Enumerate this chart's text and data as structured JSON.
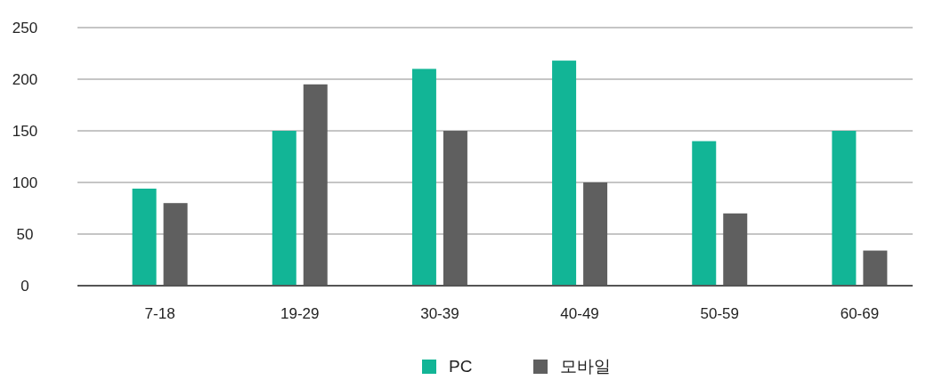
{
  "chart_data": {
    "type": "bar",
    "categories": [
      "7-18",
      "19-29",
      "30-39",
      "40-49",
      "50-59",
      "60-69"
    ],
    "series": [
      {
        "name": "PC",
        "color": "#12b596",
        "values": [
          94,
          150,
          210,
          218,
          140,
          150
        ]
      },
      {
        "name": "모바일",
        "color": "#5f5f5f",
        "values": [
          80,
          195,
          150,
          100,
          70,
          34
        ]
      }
    ],
    "ylim": [
      0,
      250
    ],
    "yticks": [
      0,
      50,
      100,
      150,
      200,
      250
    ],
    "grid": "y",
    "legend": "bottom"
  }
}
